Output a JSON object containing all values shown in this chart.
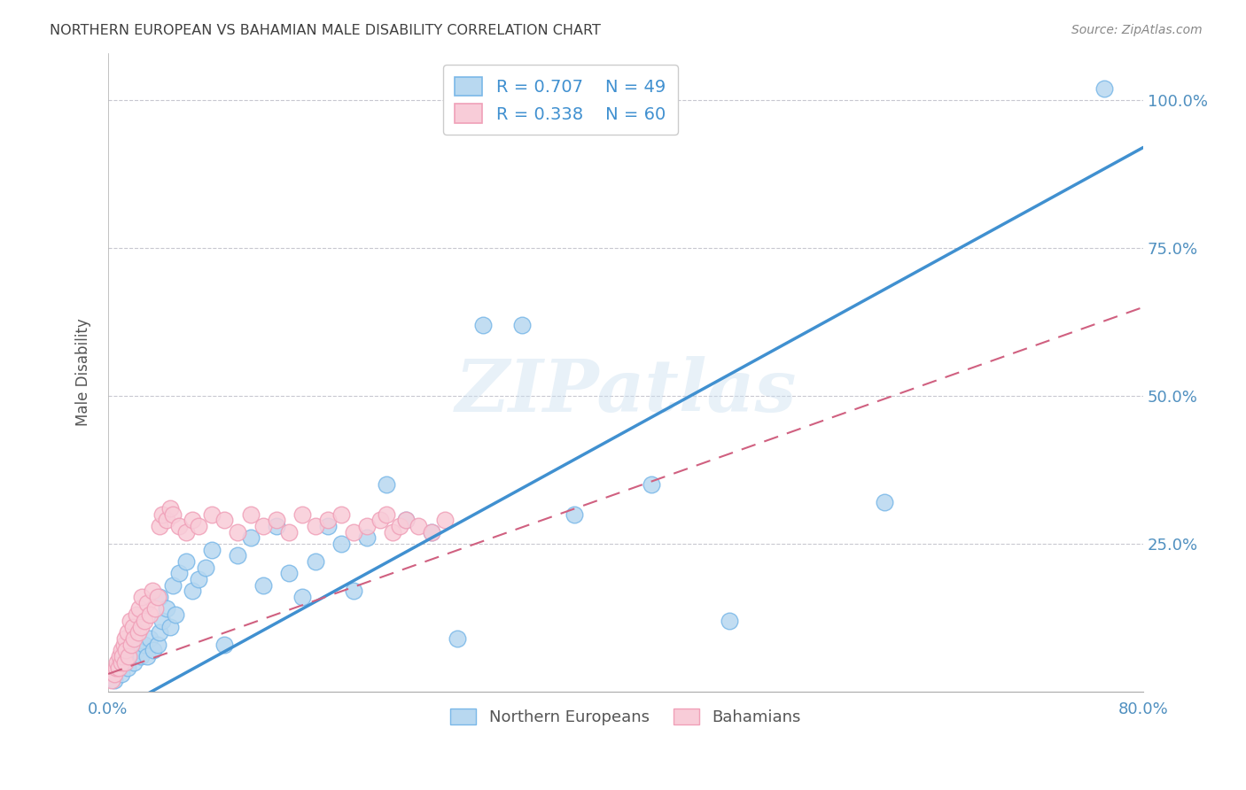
{
  "title": "NORTHERN EUROPEAN VS BAHAMIAN MALE DISABILITY CORRELATION CHART",
  "source": "Source: ZipAtlas.com",
  "ylabel": "Male Disability",
  "xlabel": "",
  "watermark": "ZIPatlas",
  "xlim": [
    0.0,
    0.8
  ],
  "ylim": [
    0.0,
    1.08
  ],
  "xtick_pos": [
    0.0,
    0.1,
    0.2,
    0.3,
    0.4,
    0.5,
    0.6,
    0.7,
    0.8
  ],
  "xtick_labels": [
    "0.0%",
    "",
    "",
    "",
    "",
    "",
    "",
    "",
    "80.0%"
  ],
  "ytick_positions": [
    0.0,
    0.25,
    0.5,
    0.75,
    1.0
  ],
  "ytick_labels": [
    "",
    "25.0%",
    "50.0%",
    "75.0%",
    "100.0%"
  ],
  "legend_r1": "R = 0.707",
  "legend_n1": "N = 49",
  "legend_r2": "R = 0.338",
  "legend_n2": "N = 60",
  "blue_color": "#7ab8e8",
  "blue_face": "#b8d8f0",
  "pink_color": "#f0a0b8",
  "pink_face": "#f8ccd8",
  "line_blue": "#4090d0",
  "line_pink": "#d06080",
  "title_color": "#404040",
  "axis_color": "#5090c0",
  "ne_x": [
    0.005,
    0.01,
    0.012,
    0.015,
    0.018,
    0.02,
    0.022,
    0.025,
    0.028,
    0.03,
    0.032,
    0.035,
    0.038,
    0.04,
    0.04,
    0.042,
    0.045,
    0.048,
    0.05,
    0.052,
    0.055,
    0.06,
    0.065,
    0.07,
    0.075,
    0.08,
    0.09,
    0.1,
    0.11,
    0.12,
    0.13,
    0.14,
    0.15,
    0.16,
    0.17,
    0.18,
    0.19,
    0.2,
    0.215,
    0.23,
    0.25,
    0.27,
    0.29,
    0.32,
    0.36,
    0.42,
    0.48,
    0.6,
    0.77
  ],
  "ne_y": [
    0.02,
    0.03,
    0.05,
    0.04,
    0.06,
    0.05,
    0.07,
    0.06,
    0.08,
    0.06,
    0.09,
    0.07,
    0.08,
    0.1,
    0.16,
    0.12,
    0.14,
    0.11,
    0.18,
    0.13,
    0.2,
    0.22,
    0.17,
    0.19,
    0.21,
    0.24,
    0.08,
    0.23,
    0.26,
    0.18,
    0.28,
    0.2,
    0.16,
    0.22,
    0.28,
    0.25,
    0.17,
    0.26,
    0.35,
    0.29,
    0.27,
    0.09,
    0.62,
    0.62,
    0.3,
    0.35,
    0.12,
    0.32,
    1.02
  ],
  "bah_x": [
    0.003,
    0.005,
    0.006,
    0.007,
    0.008,
    0.009,
    0.01,
    0.01,
    0.011,
    0.012,
    0.013,
    0.013,
    0.014,
    0.015,
    0.016,
    0.017,
    0.018,
    0.019,
    0.02,
    0.022,
    0.023,
    0.024,
    0.025,
    0.026,
    0.028,
    0.03,
    0.032,
    0.034,
    0.036,
    0.038,
    0.04,
    0.042,
    0.045,
    0.048,
    0.05,
    0.055,
    0.06,
    0.065,
    0.07,
    0.08,
    0.09,
    0.1,
    0.11,
    0.12,
    0.13,
    0.14,
    0.15,
    0.16,
    0.17,
    0.18,
    0.19,
    0.2,
    0.21,
    0.215,
    0.22,
    0.225,
    0.23,
    0.24,
    0.25,
    0.26
  ],
  "bah_y": [
    0.02,
    0.03,
    0.04,
    0.05,
    0.04,
    0.06,
    0.05,
    0.07,
    0.06,
    0.08,
    0.05,
    0.09,
    0.07,
    0.1,
    0.06,
    0.12,
    0.08,
    0.11,
    0.09,
    0.13,
    0.1,
    0.14,
    0.11,
    0.16,
    0.12,
    0.15,
    0.13,
    0.17,
    0.14,
    0.16,
    0.28,
    0.3,
    0.29,
    0.31,
    0.3,
    0.28,
    0.27,
    0.29,
    0.28,
    0.3,
    0.29,
    0.27,
    0.3,
    0.28,
    0.29,
    0.27,
    0.3,
    0.28,
    0.29,
    0.3,
    0.27,
    0.28,
    0.29,
    0.3,
    0.27,
    0.28,
    0.29,
    0.28,
    0.27,
    0.29
  ]
}
